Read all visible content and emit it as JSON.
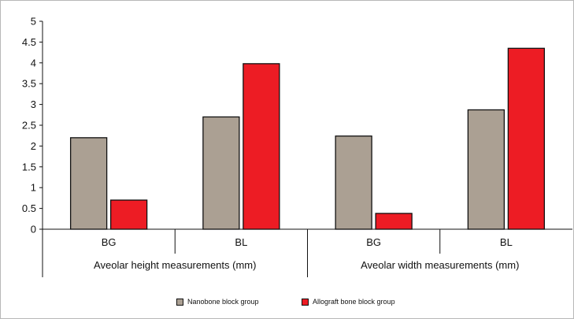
{
  "chart_data": {
    "type": "bar",
    "ylim": [
      0,
      5
    ],
    "yticks": [
      "0",
      "0.5",
      "1",
      "1.5",
      "2",
      "2.5",
      "3",
      "3.5",
      "4",
      "4.5",
      "5"
    ],
    "groups": [
      {
        "label": "Aveolar height measurements (mm)",
        "categories": [
          "BG",
          "BL"
        ]
      },
      {
        "label": "Aveolar width measurements (mm)",
        "categories": [
          "BG",
          "BL"
        ]
      }
    ],
    "categories": [
      "BG",
      "BL",
      "BG",
      "BL"
    ],
    "series": [
      {
        "name": "Nanobone block group",
        "color": "#aba093",
        "values": [
          2.2,
          2.7,
          2.24,
          2.87
        ]
      },
      {
        "name": "Allograft bone block group",
        "color": "#ed1c24",
        "values": [
          0.7,
          3.98,
          0.38,
          4.35
        ]
      }
    ],
    "legend_position": "bottom"
  }
}
